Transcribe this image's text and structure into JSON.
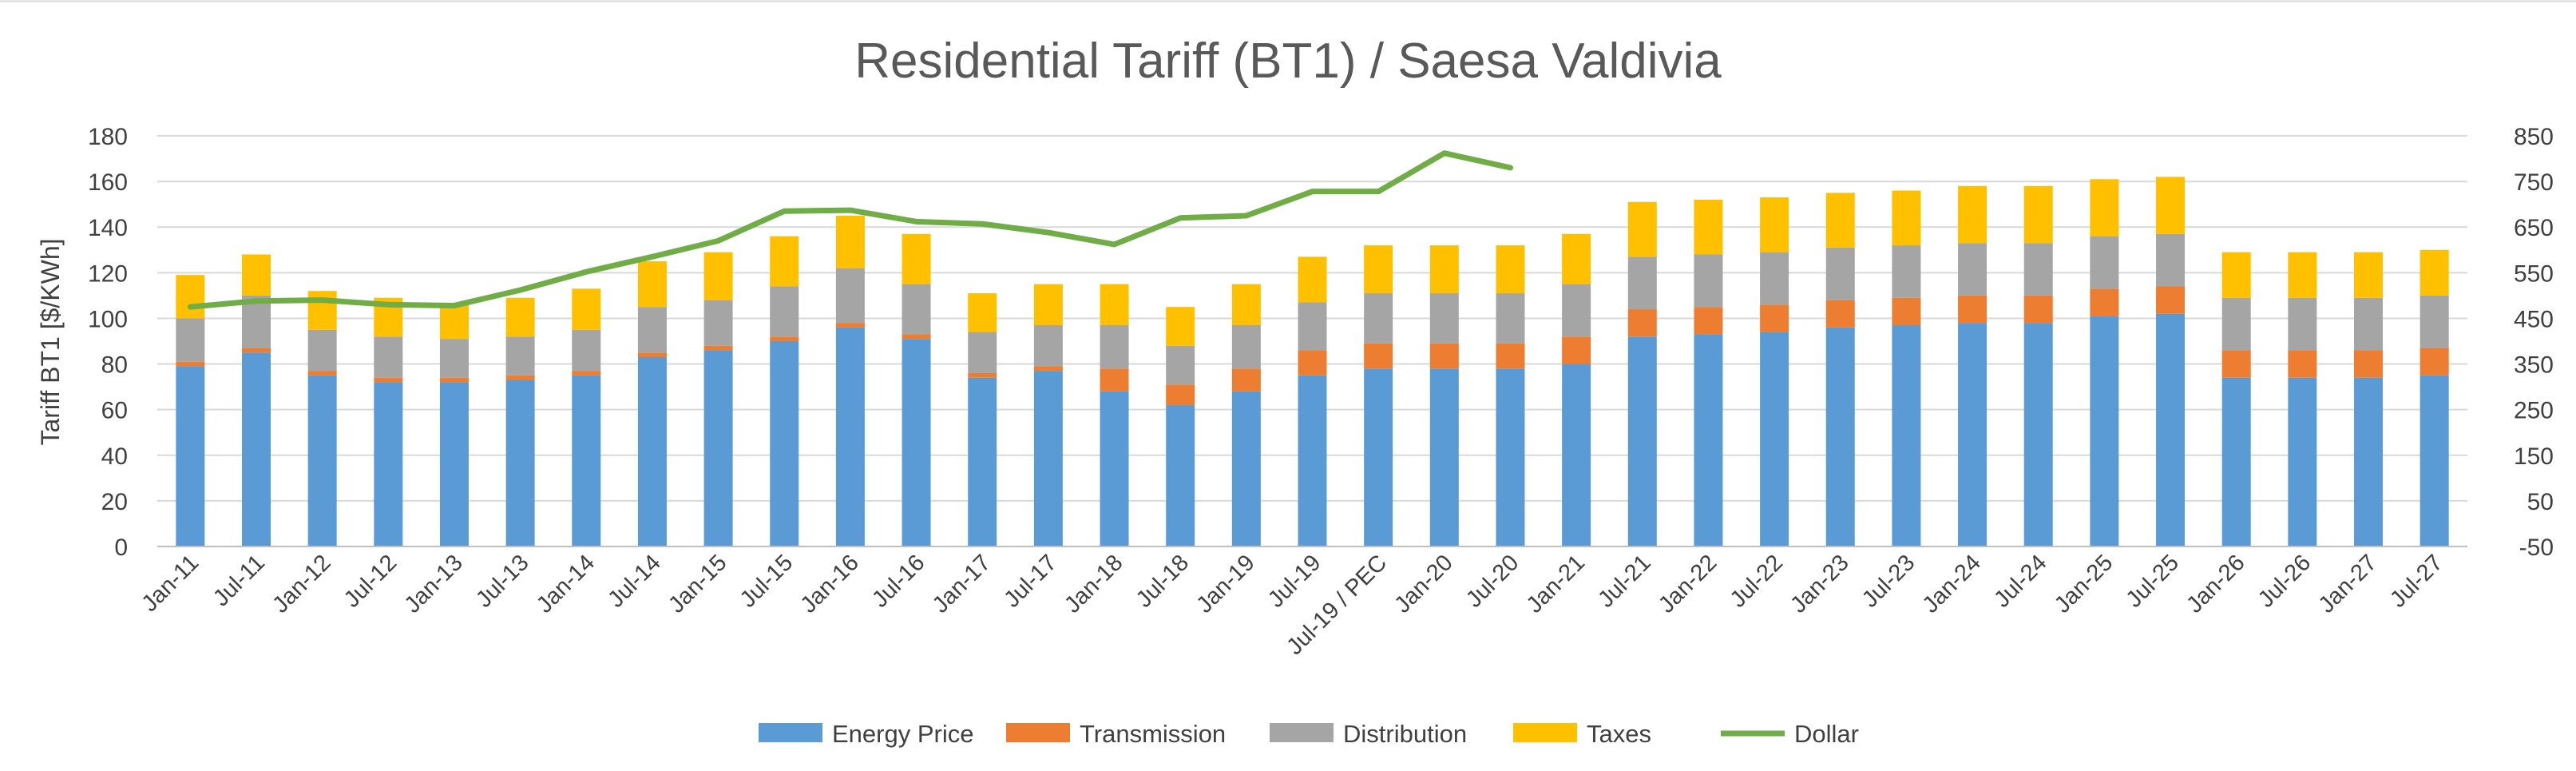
{
  "chart_data": {
    "type": "bar",
    "stacked": true,
    "title": "Residential Tariff (BT1) / Saesa Valdivia",
    "ylabel": "Tariff BT1 [$/KWh]",
    "ylim": [
      0,
      180
    ],
    "yticks": [
      "0",
      "20",
      "40",
      "60",
      "80",
      "100",
      "120",
      "140",
      "160",
      "180"
    ],
    "y2lim": [
      -50,
      850
    ],
    "y2ticks": [
      "-50",
      "50",
      "150",
      "250",
      "350",
      "450",
      "550",
      "650",
      "750",
      "850"
    ],
    "grid": true,
    "legend_position": "bottom",
    "categories": [
      "Jan-11",
      "Jul-11",
      "Jan-12",
      "Jul-12",
      "Jan-13",
      "Jul-13",
      "Jan-14",
      "Jul-14",
      "Jan-15",
      "Jul-15",
      "Jan-16",
      "Jul-16",
      "Jan-17",
      "Jul-17",
      "Jan-18",
      "Jul-18",
      "Jan-19",
      "Jul-19",
      "Jul-19 / PEC",
      "Jan-20",
      "Jul-20",
      "Jan-21",
      "Jul-21",
      "Jan-22",
      "Jul-22",
      "Jan-23",
      "Jul-23",
      "Jan-24",
      "Jul-24",
      "Jan-25",
      "Jul-25",
      "Jan-26",
      "Jul-26",
      "Jan-27",
      "Jul-27"
    ],
    "series": [
      {
        "name": "Energy Price",
        "kind": "bar",
        "color": "#5b9bd5",
        "values": [
          79,
          85,
          75,
          72,
          72,
          73,
          75,
          83,
          86,
          90,
          96,
          91,
          74,
          77,
          68,
          62,
          68,
          75,
          78,
          78,
          78,
          80,
          92,
          93,
          94,
          96,
          97,
          98,
          98,
          101,
          102,
          74,
          74,
          74,
          75
        ]
      },
      {
        "name": "Transmission",
        "kind": "bar",
        "color": "#ed7d31",
        "values": [
          2,
          2,
          2,
          2,
          2,
          2,
          2,
          2,
          2,
          2,
          2,
          2,
          2,
          2,
          10,
          9,
          10,
          11,
          11,
          11,
          11,
          12,
          12,
          12,
          12,
          12,
          12,
          12,
          12,
          12,
          12,
          12,
          12,
          12,
          12
        ]
      },
      {
        "name": "Distribution",
        "kind": "bar",
        "color": "#a5a5a5",
        "values": [
          19,
          23,
          18,
          18,
          17,
          17,
          18,
          20,
          20,
          22,
          24,
          22,
          18,
          18,
          19,
          17,
          19,
          21,
          22,
          22,
          22,
          23,
          23,
          23,
          23,
          23,
          23,
          23,
          23,
          23,
          23,
          23,
          23,
          23,
          23
        ]
      },
      {
        "name": "Taxes",
        "kind": "bar",
        "color": "#ffc000",
        "values": [
          19,
          18,
          17,
          17,
          15,
          17,
          18,
          20,
          21,
          22,
          23,
          22,
          17,
          18,
          18,
          17,
          18,
          20,
          21,
          21,
          21,
          22,
          24,
          24,
          24,
          24,
          24,
          25,
          25,
          25,
          25,
          20,
          20,
          20,
          20
        ]
      },
      {
        "name": "Dollar",
        "kind": "line",
        "axis": "secondary",
        "color": "#70ad47",
        "values": [
          475,
          488,
          490,
          480,
          478,
          512,
          552,
          585,
          620,
          685,
          687,
          662,
          657,
          638,
          612,
          670,
          675,
          728,
          728,
          812,
          780,
          null,
          null,
          null,
          null,
          null,
          null,
          null,
          null,
          null,
          null,
          null,
          null,
          null,
          null
        ]
      }
    ]
  }
}
